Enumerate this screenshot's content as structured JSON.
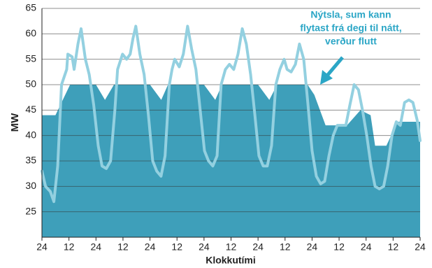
{
  "chart_data": {
    "type": "line",
    "ylabel": "MW",
    "xlabel": "Klokkutími",
    "annotation": [
      "Nýtsla, sum kann",
      "flytast frá degi til nátt,",
      "verður flutt"
    ],
    "annotation_color": "#2ba6c6",
    "xlim": [
      0,
      168
    ],
    "ylim": [
      20,
      65
    ],
    "xticks": [
      {
        "value": 0,
        "label": "24"
      },
      12,
      24,
      {
        "value": 36,
        "label": "12"
      },
      {
        "value": 48,
        "label": "24"
      },
      {
        "value": 60,
        "label": "12"
      },
      {
        "value": 72,
        "label": "24"
      },
      {
        "value": 84,
        "label": "12"
      },
      {
        "value": 96,
        "label": "24"
      },
      {
        "value": 108,
        "label": "12"
      },
      {
        "value": 120,
        "label": "24"
      },
      {
        "value": 132,
        "label": "12"
      },
      {
        "value": 144,
        "label": "24"
      },
      {
        "value": 156,
        "label": "12"
      },
      {
        "value": 168,
        "label": "24"
      }
    ],
    "yticks": [
      25,
      30,
      35,
      40,
      45,
      50,
      55,
      60,
      65
    ],
    "grid": true,
    "series": [
      {
        "type": "area",
        "color": "#3e9fba",
        "x": [
          0,
          6,
          12.5,
          24,
          28,
          32,
          48,
          53,
          56,
          72,
          77,
          80,
          96,
          101,
          104.5,
          118,
          121,
          126,
          135.5,
          141.5,
          146,
          148,
          153,
          158,
          168
        ],
        "values": [
          44,
          44,
          50,
          50,
          47,
          50,
          50,
          47,
          50,
          50,
          47,
          50,
          50,
          47,
          50,
          50,
          48,
          42,
          42,
          45,
          44,
          38,
          38,
          42.7,
          42.7
        ]
      },
      {
        "type": "line",
        "color": "#93d0e0",
        "x": [
          0,
          1.6,
          3.7,
          5.3,
          7,
          8.7,
          11,
          11.5,
          13.4,
          14.3,
          16,
          17.4,
          19.3,
          21,
          23,
          25,
          26.7,
          28.6,
          30.5,
          32.4,
          33.6,
          35.8,
          37.6,
          39.2,
          40.4,
          41.7,
          43.5,
          45.4,
          47.3,
          49.2,
          51,
          52.9,
          54.7,
          56.6,
          57.8,
          59,
          61,
          62.8,
          64.7,
          66.5,
          68.4,
          70.3,
          72.2,
          74,
          75.9,
          77.8,
          79.6,
          81.5,
          83.3,
          85.2,
          87.1,
          89,
          90.8,
          92.7,
          94.6,
          96.4,
          98.3,
          100.1,
          102,
          103.9,
          105.7,
          107.6,
          108.9,
          110.7,
          112.6,
          114.4,
          116.3,
          118.2,
          120,
          121.9,
          123.8,
          125.6,
          127.5,
          129.4,
          131.2,
          133.1,
          135,
          136.8,
          138.7,
          140.6,
          142.4,
          144.3,
          146.2,
          148,
          149.9,
          151.8,
          153.6,
          155.5,
          157.4,
          159.2,
          161.1,
          163,
          164.8,
          166.7,
          168
        ],
        "values": [
          33,
          30,
          29,
          27,
          34,
          50,
          53,
          56,
          55.5,
          53,
          58,
          61,
          55,
          52,
          46,
          38,
          34,
          33.5,
          35,
          45,
          53,
          56,
          55,
          56,
          59,
          61.5,
          56,
          52,
          44,
          35,
          33,
          32,
          36,
          50,
          53,
          55,
          53.5,
          56,
          61.5,
          57,
          53,
          45,
          37,
          35,
          34,
          36,
          50,
          53,
          54,
          53,
          56,
          61,
          58,
          52,
          44,
          36,
          34,
          34,
          38,
          50,
          53,
          55,
          53,
          52.5,
          54,
          58,
          55,
          46,
          37,
          32,
          30.5,
          31,
          36,
          40,
          42,
          42,
          42,
          46,
          50,
          49,
          45,
          40,
          34,
          30,
          29.5,
          30,
          34,
          40,
          42.7,
          42,
          46.5,
          47,
          46.5,
          43,
          39
        ]
      }
    ]
  }
}
